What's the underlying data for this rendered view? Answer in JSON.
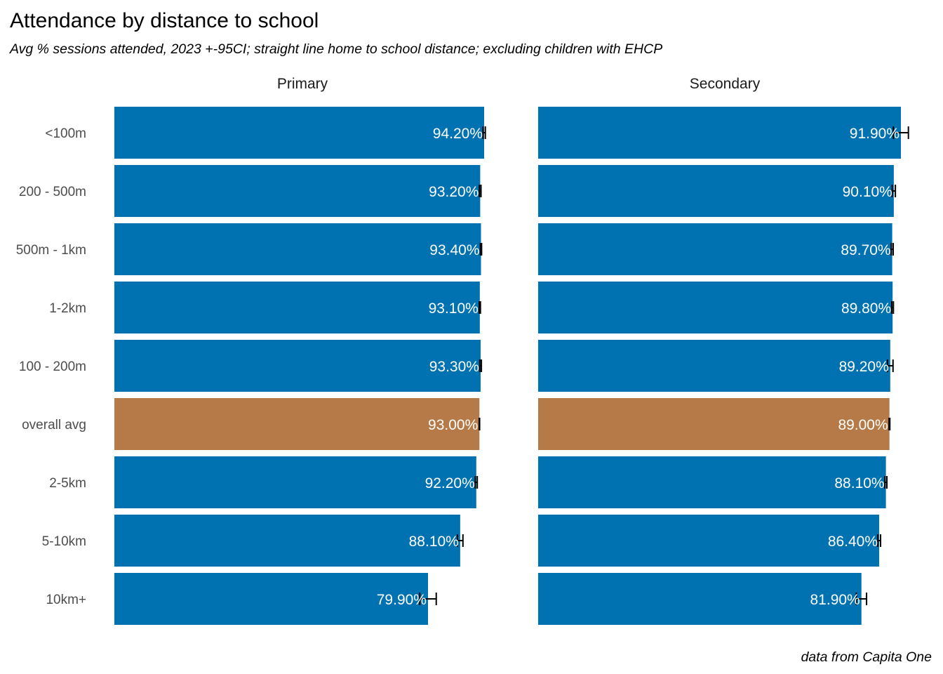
{
  "chart_data": {
    "type": "bar",
    "orientation": "horizontal",
    "title": "Attendance by distance to school",
    "subtitle": "Avg % sessions attended, 2023 +-95CI; straight line home to school distance; excluding children with EHCP",
    "caption": "data from Capita One",
    "categories": [
      "<100m",
      "200 - 500m",
      "500m - 1km",
      "1-2km",
      "100 - 200m",
      "overall avg",
      "2-5km",
      "5-10km",
      "10km+"
    ],
    "highlight_category": "overall avg",
    "colors": {
      "bar": "#0072B2",
      "highlight": "#B57A47",
      "error_bar": "#000000",
      "label": "#FFFFFF"
    },
    "xlim": [
      0,
      100
    ],
    "grid": false,
    "facets": [
      {
        "name": "Primary",
        "values": [
          94.2,
          93.2,
          93.4,
          93.1,
          93.3,
          93.0,
          92.2,
          88.1,
          79.9
        ],
        "labels": [
          "94.20%",
          "93.20%",
          "93.40%",
          "93.10%",
          "93.30%",
          "93.00%",
          "92.20%",
          "88.10%",
          "79.90%"
        ],
        "ci_halfwidth": [
          0.3,
          0.2,
          0.15,
          0.15,
          0.2,
          0.05,
          0.25,
          0.7,
          2.1
        ]
      },
      {
        "name": "Secondary",
        "values": [
          91.9,
          90.1,
          89.7,
          89.8,
          89.2,
          89.0,
          88.1,
          86.4,
          81.9
        ],
        "labels": [
          "91.90%",
          "90.10%",
          "89.70%",
          "89.80%",
          "89.20%",
          "89.00%",
          "88.10%",
          "86.40%",
          "81.90%"
        ],
        "ci_halfwidth": [
          1.9,
          0.4,
          0.25,
          0.2,
          0.7,
          0.1,
          0.25,
          0.35,
          1.3
        ]
      }
    ]
  }
}
